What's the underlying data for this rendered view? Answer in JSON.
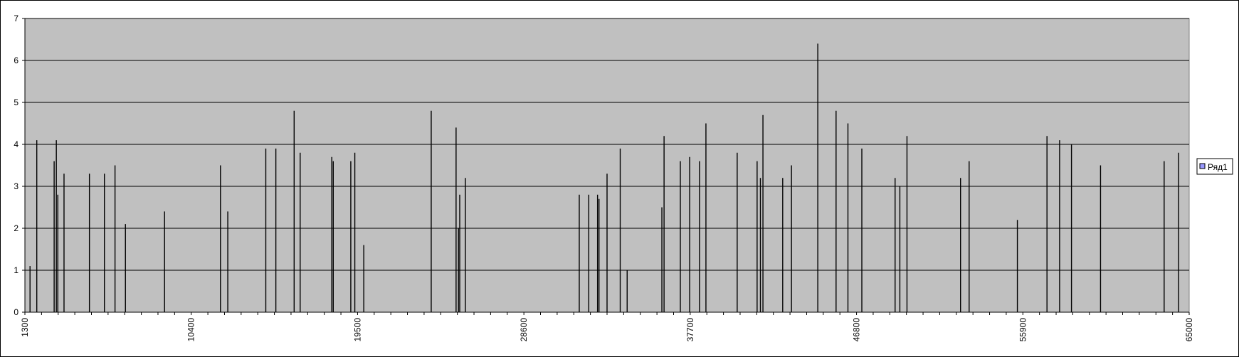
{
  "chart_data": {
    "type": "bar",
    "title": "",
    "xlabel": "",
    "ylabel": "",
    "ylim": [
      0,
      7
    ],
    "xlim": [
      1300,
      65000
    ],
    "x_tick_step": 910,
    "y_ticks": [
      "0",
      "1",
      "2",
      "3",
      "4",
      "5",
      "6",
      "7"
    ],
    "grid": true,
    "legend_position": "right",
    "colors": {
      "plot_background": "#c0c0c0",
      "bars": "#000000",
      "gridlines": "#000000",
      "legend_swatch": "#9999ff"
    },
    "series": [
      {
        "name": "Ряд1",
        "points": [
          [
            1580,
            1.1
          ],
          [
            1950,
            4.1
          ],
          [
            2900,
            3.6
          ],
          [
            3020,
            4.1
          ],
          [
            3100,
            2.8
          ],
          [
            3440,
            3.3
          ],
          [
            4830,
            3.3
          ],
          [
            5650,
            3.3
          ],
          [
            6230,
            3.5
          ],
          [
            6800,
            2.1
          ],
          [
            8940,
            2.4
          ],
          [
            12000,
            3.5
          ],
          [
            12400,
            2.4
          ],
          [
            14480,
            3.9
          ],
          [
            15030,
            3.9
          ],
          [
            16030,
            4.8
          ],
          [
            16360,
            3.8
          ],
          [
            18090,
            3.7
          ],
          [
            18170,
            3.6
          ],
          [
            19130,
            3.6
          ],
          [
            19350,
            3.8
          ],
          [
            19840,
            1.6
          ],
          [
            23530,
            4.8
          ],
          [
            24890,
            4.4
          ],
          [
            25020,
            2.0
          ],
          [
            25090,
            2.8
          ],
          [
            25400,
            3.2
          ],
          [
            31630,
            2.8
          ],
          [
            32150,
            2.8
          ],
          [
            32630,
            2.8
          ],
          [
            32710,
            2.7
          ],
          [
            33150,
            3.3
          ],
          [
            33870,
            3.9
          ],
          [
            34250,
            1.0
          ],
          [
            36150,
            2.5
          ],
          [
            36270,
            4.2
          ],
          [
            37160,
            3.6
          ],
          [
            37670,
            3.7
          ],
          [
            38210,
            3.6
          ],
          [
            38560,
            4.5
          ],
          [
            40270,
            3.8
          ],
          [
            41360,
            3.6
          ],
          [
            41540,
            3.2
          ],
          [
            41680,
            4.7
          ],
          [
            42760,
            3.2
          ],
          [
            43240,
            3.5
          ],
          [
            44680,
            6.4
          ],
          [
            45680,
            4.8
          ],
          [
            46330,
            4.5
          ],
          [
            47090,
            3.9
          ],
          [
            48910,
            3.2
          ],
          [
            49170,
            3.0
          ],
          [
            49560,
            4.2
          ],
          [
            52490,
            3.2
          ],
          [
            52960,
            3.6
          ],
          [
            55600,
            2.2
          ],
          [
            57220,
            4.2
          ],
          [
            57910,
            4.1
          ],
          [
            58560,
            4.0
          ],
          [
            60150,
            3.5
          ],
          [
            63630,
            3.6
          ],
          [
            64420,
            3.8
          ]
        ]
      }
    ]
  }
}
